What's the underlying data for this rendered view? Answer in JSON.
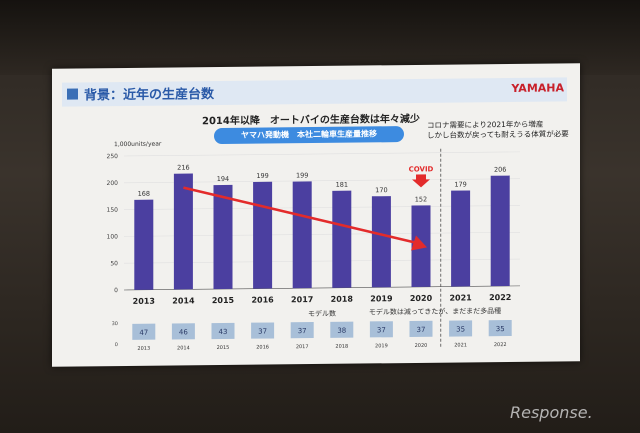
{
  "slide": {
    "title": "背景：近年の生産台数",
    "logo": "YAMAHA",
    "subtitle": "2014年以降　オートバイの生産台数は年々減少",
    "pill_label": "ヤマハ発動機　本社二輪車生産量推移",
    "note_lines": [
      "コロナ需要により2021年から増産",
      "しかし台数が戻っても耐えうる体質が必要"
    ],
    "watermark": "Response."
  },
  "colors": {
    "bar": "#4b3fa0",
    "arrow": "#e32b2b",
    "accent": "#3b6fb6",
    "pill": "#3d8be0",
    "cell": "#a8bfd8"
  },
  "chart_data": [
    {
      "type": "bar",
      "title": "",
      "ylabel": "1,000units/year",
      "ylim": [
        0,
        250
      ],
      "yticks": [
        0,
        50,
        100,
        150,
        200,
        250
      ],
      "categories": [
        "2013",
        "2014",
        "2015",
        "2016",
        "2017",
        "2018",
        "2019",
        "2020",
        "2021",
        "2022"
      ],
      "values": [
        168,
        216,
        194,
        199,
        199,
        181,
        170,
        152,
        179,
        206
      ],
      "annotation": "COVID",
      "annotation_category": "2020",
      "grid": true
    },
    {
      "type": "table",
      "title": "モデル数",
      "caption": "モデル数は減ってきたが、まだまだ多品種",
      "yticks": [
        0,
        30
      ],
      "categories": [
        "2013",
        "2014",
        "2015",
        "2016",
        "2017",
        "2018",
        "2019",
        "2020",
        "2021",
        "2022"
      ],
      "values": [
        47,
        46,
        43,
        37,
        37,
        38,
        37,
        37,
        35,
        35
      ]
    }
  ]
}
